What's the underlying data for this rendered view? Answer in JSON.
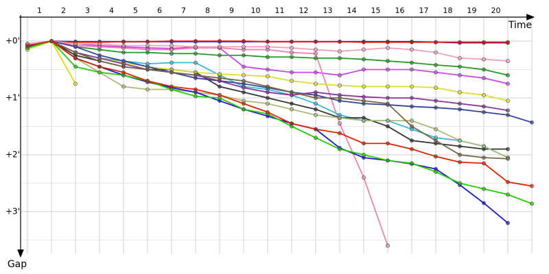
{
  "chart_data": {
    "type": "line",
    "x_label": "Time",
    "y_label": "Gap",
    "x": [
      0,
      1,
      2,
      3,
      4,
      5,
      6,
      7,
      8,
      9,
      10,
      11,
      12,
      13,
      14,
      15,
      16,
      17,
      18,
      19,
      20,
      21
    ],
    "xlim": [
      0,
      21
    ],
    "xticks": [
      {
        "value": 0.5,
        "label": "1"
      },
      {
        "value": 1.5,
        "label": "2"
      },
      {
        "value": 2.5,
        "label": "3"
      },
      {
        "value": 3.5,
        "label": "4"
      },
      {
        "value": 4.5,
        "label": "5"
      },
      {
        "value": 5.5,
        "label": "6"
      },
      {
        "value": 6.5,
        "label": "7"
      },
      {
        "value": 7.5,
        "label": "8"
      },
      {
        "value": 8.5,
        "label": "9"
      },
      {
        "value": 9.5,
        "label": "10"
      },
      {
        "value": 10.5,
        "label": "11"
      },
      {
        "value": 11.5,
        "label": "12"
      },
      {
        "value": 12.5,
        "label": "13"
      },
      {
        "value": 13.5,
        "label": "14"
      },
      {
        "value": 14.5,
        "label": "15"
      },
      {
        "value": 15.5,
        "label": "16"
      },
      {
        "value": 16.5,
        "label": "17"
      },
      {
        "value": 17.5,
        "label": "18"
      },
      {
        "value": 18.5,
        "label": "19"
      },
      {
        "value": 19.5,
        "label": "20"
      }
    ],
    "ylim": [
      0,
      3.7
    ],
    "yticks": [
      {
        "value": 0,
        "label": "+0'"
      },
      {
        "value": 1,
        "label": "+1'"
      },
      {
        "value": 2,
        "label": "+2'"
      },
      {
        "value": 3,
        "label": "+3'"
      }
    ],
    "y_minor_ticks": [
      0.5,
      1.5,
      2.5,
      3.5
    ],
    "grid": true,
    "series": [
      {
        "color": "#1a1aff",
        "values": [
          0.06,
          0,
          0.01,
          0.01,
          0.01,
          0.01,
          0.01,
          0.01,
          0.01,
          0.01,
          0.01,
          0.01,
          0.01,
          0.01,
          0.01,
          0.01,
          0.01,
          0.02,
          0.03,
          0.03,
          0.03,
          null
        ]
      },
      {
        "color": "#ee1100",
        "values": [
          0.05,
          0,
          0.02,
          0.02,
          0.01,
          0.01,
          0,
          0,
          0,
          0,
          0.01,
          0.01,
          0.01,
          0.01,
          0.02,
          0.02,
          0.02,
          0.02,
          0.02,
          0.02,
          0.02,
          null
        ]
      },
      {
        "color": "#229922",
        "values": [
          0.1,
          0,
          0.1,
          0.15,
          0.2,
          0.2,
          0.22,
          0.22,
          0.25,
          0.25,
          0.28,
          0.28,
          0.3,
          0.3,
          0.32,
          0.35,
          0.38,
          0.42,
          0.45,
          0.5,
          0.6,
          null
        ]
      },
      {
        "color": "#cc44ee",
        "values": [
          0.05,
          0,
          0.05,
          0.08,
          0.1,
          0.12,
          0.13,
          0.1,
          0.12,
          0.45,
          0.5,
          0.55,
          0.55,
          0.6,
          0.5,
          0.5,
          0.5,
          0.55,
          0.6,
          0.65,
          0.75,
          null
        ]
      },
      {
        "color": "#f080b0",
        "values": [
          0.05,
          0,
          0.08,
          0.1,
          0.12,
          0.15,
          0.15,
          0.12,
          0.12,
          0.15,
          0.15,
          0.2,
          0.22,
          1.45,
          2.4,
          3.6,
          null,
          null,
          null,
          null,
          null,
          null
        ]
      },
      {
        "color": "#f0a0b8",
        "values": [
          0.05,
          0,
          0.05,
          0.05,
          0.08,
          0.08,
          0.08,
          0.1,
          0.1,
          0.1,
          0.1,
          0.12,
          0.15,
          0.18,
          0.15,
          0.12,
          0.15,
          0.2,
          0.3,
          0.32,
          0.35,
          null
        ]
      },
      {
        "color": "#33bbdd",
        "values": [
          0.12,
          0,
          0.2,
          0.3,
          0.35,
          0.4,
          0.38,
          0.38,
          0.6,
          0.8,
          0.85,
          0.95,
          1.1,
          1.3,
          1.4,
          1.4,
          1.55,
          1.7,
          1.75,
          1.85,
          2.05,
          null
        ]
      },
      {
        "color": "#333333",
        "values": [
          0.1,
          0,
          0.25,
          0.35,
          0.45,
          0.5,
          0.5,
          0.55,
          0.8,
          0.9,
          1.0,
          1.1,
          1.2,
          1.35,
          1.35,
          1.5,
          1.75,
          1.8,
          1.85,
          1.9,
          1.9,
          null
        ]
      },
      {
        "color": "#dddd33",
        "values": [
          0.15,
          0,
          0.2,
          0.3,
          0.38,
          0.45,
          0.5,
          0.55,
          0.58,
          0.6,
          0.62,
          0.7,
          0.75,
          0.78,
          0.8,
          0.8,
          0.8,
          0.82,
          0.9,
          0.95,
          1.05,
          null
        ]
      },
      {
        "color": "#dddd00",
        "values": [
          0.1,
          0,
          0.75,
          null,
          null,
          null,
          null,
          null,
          null,
          null,
          null,
          null,
          null,
          null,
          null,
          null,
          null,
          null,
          null,
          null,
          null,
          null
        ]
      },
      {
        "color": "#aabb77",
        "values": [
          0.1,
          0,
          0.3,
          0.55,
          0.8,
          0.85,
          0.85,
          0.9,
          0.95,
          1.05,
          1.1,
          1.2,
          1.3,
          1.35,
          1.4,
          1.4,
          1.4,
          1.55,
          1.75,
          1.85,
          2.05,
          null
        ]
      },
      {
        "color": "#334499",
        "values": [
          0.1,
          0,
          0.1,
          0.25,
          0.35,
          0.45,
          0.55,
          0.65,
          0.7,
          0.75,
          0.82,
          0.9,
          0.95,
          1.05,
          1.1,
          1.12,
          1.15,
          1.17,
          1.2,
          1.25,
          1.3,
          1.43
        ]
      },
      {
        "color": "#883399",
        "values": [
          0.1,
          0,
          0.2,
          0.3,
          0.4,
          0.5,
          0.55,
          0.6,
          0.7,
          0.82,
          0.9,
          0.95,
          0.9,
          0.95,
          0.98,
          1.0,
          1.0,
          1.05,
          1.1,
          1.15,
          1.22,
          null
        ]
      },
      {
        "color": "#776644",
        "values": [
          0.1,
          0,
          0.2,
          0.35,
          0.45,
          0.5,
          0.55,
          0.6,
          0.65,
          0.7,
          0.8,
          0.9,
          1.0,
          1.0,
          1.05,
          1.1,
          1.5,
          1.75,
          2.0,
          2.05,
          2.07,
          null
        ]
      },
      {
        "color": "#1a1acc",
        "values": [
          0.1,
          0,
          0.3,
          0.45,
          0.6,
          0.72,
          0.82,
          0.9,
          1.05,
          1.2,
          1.32,
          1.45,
          1.55,
          1.88,
          2.05,
          2.1,
          2.16,
          2.25,
          2.53,
          2.85,
          3.2,
          null
        ]
      },
      {
        "color": "#22cc00",
        "values": [
          0.12,
          0,
          0.45,
          0.55,
          0.6,
          0.7,
          0.85,
          0.97,
          1.0,
          1.2,
          1.28,
          1.5,
          1.7,
          1.9,
          2.0,
          2.1,
          2.15,
          2.3,
          2.5,
          2.6,
          2.7,
          2.86
        ]
      },
      {
        "color": "#dd2200",
        "values": [
          0.08,
          0,
          0.3,
          0.45,
          0.55,
          0.7,
          0.8,
          0.85,
          0.95,
          1.1,
          1.25,
          1.45,
          1.55,
          1.62,
          1.8,
          1.8,
          1.9,
          2.03,
          2.13,
          2.15,
          2.48,
          2.55
        ]
      }
    ]
  }
}
